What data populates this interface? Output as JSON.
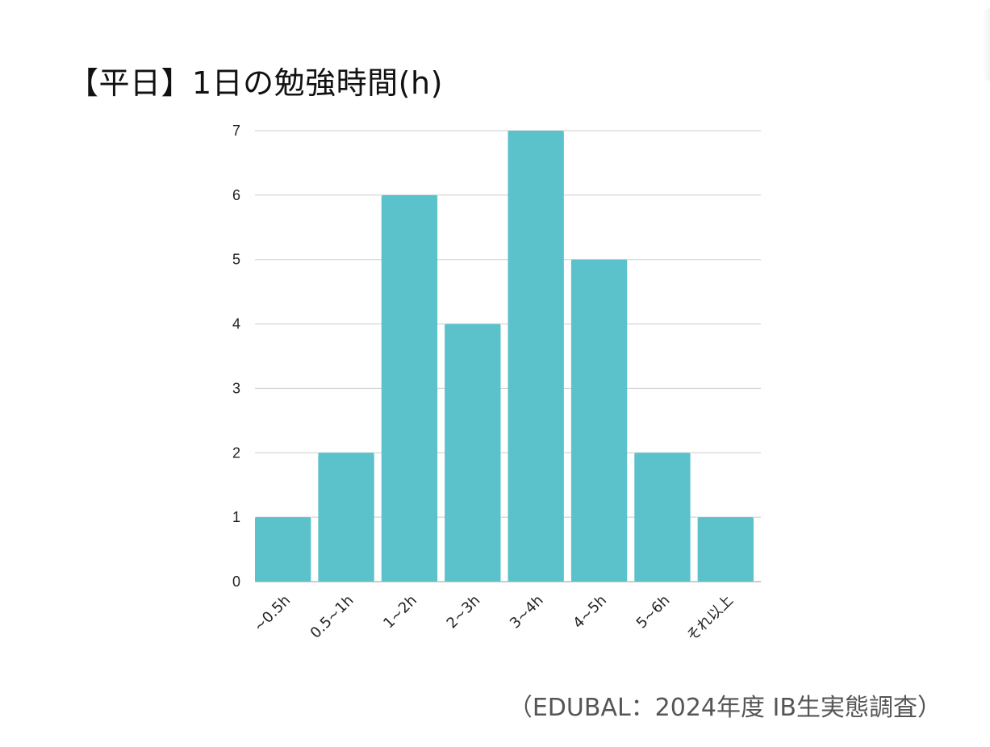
{
  "title": "【平日】1日の勉強時間(h)",
  "source": "（EDUBAL：2024年度 IB生実態調査）",
  "chart_data": {
    "type": "bar",
    "title": "【平日】1日の勉強時間(h)",
    "categories": [
      "~0.5h",
      "0.5~1h",
      "1~2h",
      "2~3h",
      "3~4h",
      "4~5h",
      "5~6h",
      "それ以上"
    ],
    "series": [
      {
        "values": [
          1,
          2,
          6,
          4,
          7,
          5,
          2,
          1
        ]
      }
    ],
    "xlabel": "",
    "ylabel": "",
    "ylim": [
      0,
      7
    ],
    "yticks": [
      0,
      1,
      2,
      3,
      4,
      5,
      6,
      7
    ],
    "grid": true,
    "legend": "none",
    "bar_color": "#5BC2CB",
    "grid_color": "#CCCCCC"
  }
}
